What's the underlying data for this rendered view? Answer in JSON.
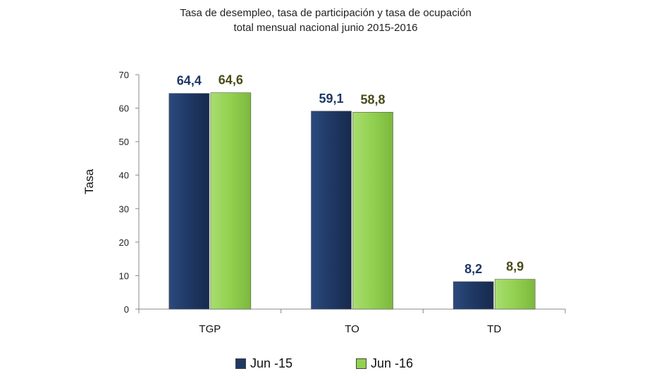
{
  "chart_data": {
    "type": "bar",
    "title_line1": "Tasa de desempleo, tasa de participación y tasa de ocupación",
    "title_line2": "total mensual nacional junio 2015-2016",
    "xlabel": "",
    "ylabel": "Tasa",
    "ylim": [
      0,
      70
    ],
    "yticks": [
      "0",
      "10",
      "20",
      "30",
      "40",
      "50",
      "60",
      "70"
    ],
    "categories": [
      "TGP",
      "TO",
      "TD"
    ],
    "series": [
      {
        "name": "Jun -15",
        "color": "#1f3864",
        "label_color": "#1f3864",
        "values": [
          64.4,
          59.1,
          8.2
        ],
        "labels": [
          "64,4",
          "59,1",
          "8,2"
        ]
      },
      {
        "name": "Jun -16",
        "color": "#92d050",
        "label_color": "#4a4a1a",
        "values": [
          64.6,
          58.8,
          8.9
        ],
        "labels": [
          "64,6",
          "58,8",
          "8,9"
        ]
      }
    ],
    "legend_position": "bottom",
    "grid": false
  }
}
